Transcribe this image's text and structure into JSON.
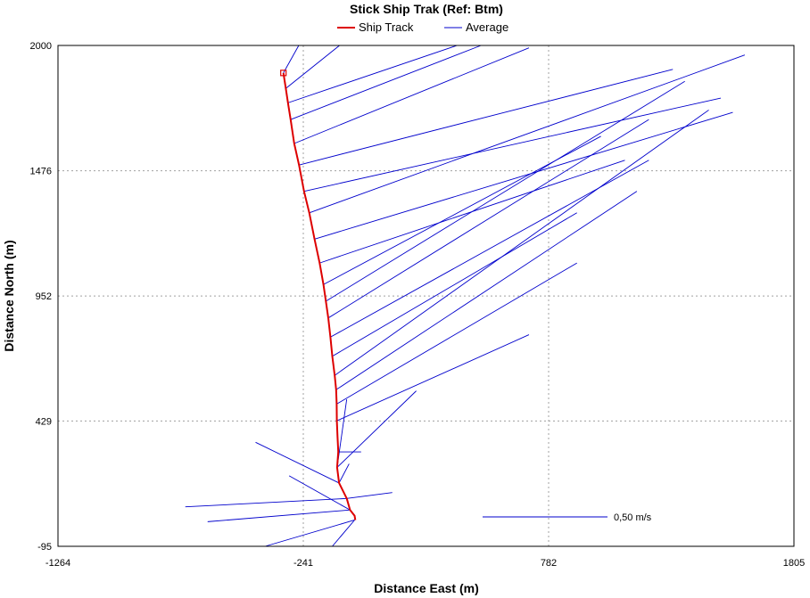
{
  "chart_data": {
    "type": "line",
    "title": "Stick Ship Trak (Ref: Btm)",
    "xlabel": "Distance East (m)",
    "ylabel": "Distance North (m)",
    "xlim": [
      -1264,
      1805
    ],
    "ylim": [
      -95,
      2000
    ],
    "x_ticks": [
      "-1264",
      "-241",
      "782",
      "1805"
    ],
    "y_ticks": [
      "2000",
      "1476",
      "952",
      "429",
      "-95"
    ],
    "grid": true,
    "legend": {
      "placement": "top",
      "entries": [
        {
          "name": "Ship Track",
          "color": "#dd0000"
        },
        {
          "name": "Average",
          "color": "#0000cc"
        }
      ]
    },
    "scale_label": "0,50 m/s",
    "series": [
      {
        "name": "Ship Track",
        "color": "#dd0000",
        "x": [
          -24,
          -27,
          -46,
          -60,
          -92,
          -100,
          -95,
          -98,
          -101,
          -102,
          -104,
          -110,
          -120,
          -128,
          -137,
          -147,
          -157,
          -173,
          -194,
          -216,
          -238,
          -259,
          -279,
          -294,
          -305,
          -314,
          -324
        ],
        "y": [
          15,
          33,
          57,
          105,
          170,
          235,
          300,
          360,
          430,
          500,
          560,
          620,
          700,
          780,
          860,
          930,
          1000,
          1090,
          1190,
          1300,
          1390,
          1500,
          1590,
          1690,
          1760,
          1820,
          1885
        ]
      },
      {
        "name": "Average",
        "color": "#0000cc",
        "segments": [
          {
            "x": [
              -27,
              -120
            ],
            "y": [
              15,
              -95
            ]
          },
          {
            "x": [
              -27,
              -400
            ],
            "y": [
              15,
              -95
            ]
          },
          {
            "x": [
              -46,
              -640
            ],
            "y": [
              57,
              8
            ]
          },
          {
            "x": [
              -46,
              -300
            ],
            "y": [
              57,
              200
            ]
          },
          {
            "x": [
              -60,
              -733
            ],
            "y": [
              105,
              70
            ]
          },
          {
            "x": [
              -60,
              130
            ],
            "y": [
              105,
              130
            ]
          },
          {
            "x": [
              -92,
              -440
            ],
            "y": [
              170,
              340
            ]
          },
          {
            "x": [
              -92,
              -50
            ],
            "y": [
              170,
              250
            ]
          },
          {
            "x": [
              -100,
              -60
            ],
            "y": [
              235,
              520
            ]
          },
          {
            "x": [
              -100,
              230
            ],
            "y": [
              235,
              555
            ]
          },
          {
            "x": [
              -98,
              0
            ],
            "y": [
              300,
              300
            ]
          },
          {
            "x": [
              -101,
              700
            ],
            "y": [
              430,
              790
            ]
          },
          {
            "x": [
              -102,
              900
            ],
            "y": [
              500,
              1090
            ]
          },
          {
            "x": [
              -104,
              1150
            ],
            "y": [
              560,
              1390
            ]
          },
          {
            "x": [
              -110,
              1450
            ],
            "y": [
              620,
              1730
            ]
          },
          {
            "x": [
              -120,
              900
            ],
            "y": [
              700,
              1300
            ]
          },
          {
            "x": [
              -128,
              1200
            ],
            "y": [
              780,
              1520
            ]
          },
          {
            "x": [
              -137,
              1200
            ],
            "y": [
              860,
              1690
            ]
          },
          {
            "x": [
              -147,
              1350
            ],
            "y": [
              930,
              1850
            ]
          },
          {
            "x": [
              -157,
              1000
            ],
            "y": [
              1000,
              1620
            ]
          },
          {
            "x": [
              -173,
              1100
            ],
            "y": [
              1090,
              1520
            ]
          },
          {
            "x": [
              -194,
              1550
            ],
            "y": [
              1190,
              1720
            ]
          },
          {
            "x": [
              -216,
              1600
            ],
            "y": [
              1300,
              1960
            ]
          },
          {
            "x": [
              -238,
              1500
            ],
            "y": [
              1390,
              1780
            ]
          },
          {
            "x": [
              -259,
              1300
            ],
            "y": [
              1500,
              1900
            ]
          },
          {
            "x": [
              -279,
              700
            ],
            "y": [
              1590,
              1990
            ]
          },
          {
            "x": [
              -294,
              500
            ],
            "y": [
              1690,
              2000
            ]
          },
          {
            "x": [
              -305,
              400
            ],
            "y": [
              1760,
              2000
            ]
          },
          {
            "x": [
              -314,
              -90
            ],
            "y": [
              1820,
              2000
            ]
          },
          {
            "x": [
              -324,
              -260
            ],
            "y": [
              1885,
              2000
            ]
          }
        ]
      }
    ]
  }
}
